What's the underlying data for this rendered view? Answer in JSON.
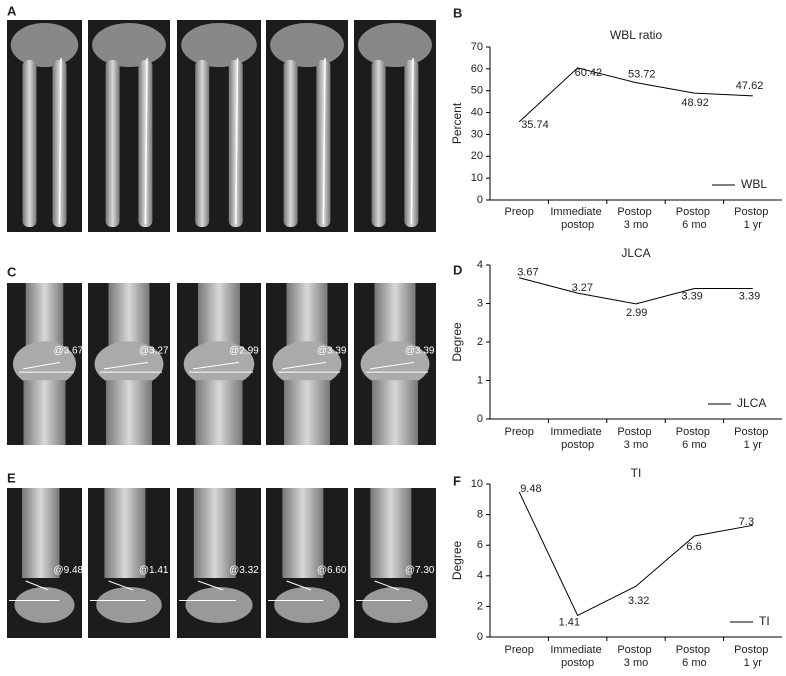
{
  "panel_labels": [
    "A",
    "B",
    "C",
    "D",
    "E",
    "F"
  ],
  "radiographs": {
    "C": {
      "annotations": [
        "@3.67",
        "@3.27",
        "@2.99",
        "@3.39",
        "@3.39"
      ]
    },
    "E": {
      "annotations": [
        "@9.48",
        "@1.41",
        "@3.32",
        "@6.60",
        "@7.30"
      ]
    }
  },
  "chart_data": [
    {
      "type": "line",
      "title": "WBL ratio",
      "y_label": "Percent",
      "categories": [
        "Preop",
        "Immediate postop",
        "Postop 3 mo",
        "Postop 6 mo",
        "Postop 1 yr"
      ],
      "series": [
        {
          "name": "WBL",
          "color": "#000000",
          "values": [
            35.74,
            60.42,
            53.72,
            48.92,
            47.62
          ]
        }
      ],
      "ylim": [
        0,
        70
      ],
      "yticks": [
        0,
        10,
        20,
        30,
        40,
        50,
        60,
        70
      ],
      "legend": "lower right"
    },
    {
      "type": "line",
      "title": "JLCA",
      "y_label": "Degree",
      "categories": [
        "Preop",
        "Immediate postop",
        "Postop 3 mo",
        "Postop 6 mo",
        "Postop 1 yr"
      ],
      "series": [
        {
          "name": "JLCA",
          "color": "#000000",
          "values": [
            3.67,
            3.27,
            2.99,
            3.39,
            3.39
          ]
        }
      ],
      "ylim": [
        0,
        4
      ],
      "yticks": [
        0,
        1,
        2,
        3,
        4
      ],
      "legend": "lower right"
    },
    {
      "type": "line",
      "title": "TI",
      "y_label": "Degree",
      "categories": [
        "Preop",
        "Immediate postop",
        "Postop 3 mo",
        "Postop 6 mo",
        "Postop 1 yr"
      ],
      "series": [
        {
          "name": "TI",
          "color": "#000000",
          "values": [
            9.48,
            1.41,
            3.32,
            6.6,
            7.3
          ]
        }
      ],
      "ylim": [
        0,
        10
      ],
      "yticks": [
        0,
        2,
        4,
        6,
        8,
        10
      ],
      "legend": "lower right"
    }
  ]
}
